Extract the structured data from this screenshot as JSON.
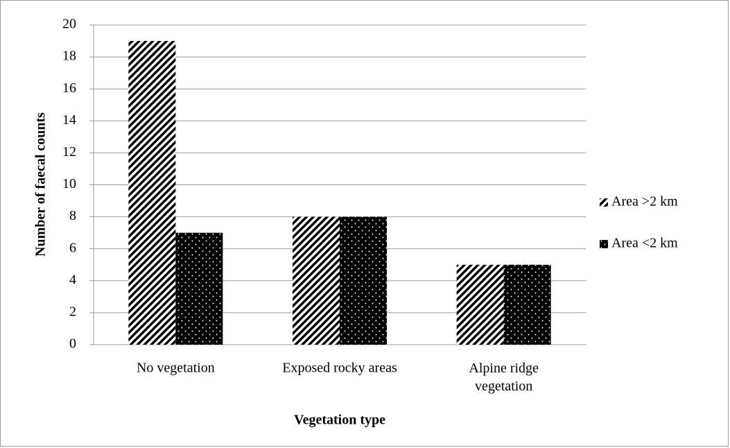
{
  "chart_data": {
    "type": "bar",
    "xlabel": "Vegetation type",
    "ylabel": "Number of faecal counts",
    "categories": [
      "No vegetation",
      "Exposed rocky areas",
      "Alpine ridge vegetation"
    ],
    "series": [
      {
        "name": "Area >2 km",
        "color": "#000000",
        "pattern": "hatch",
        "values": [
          19,
          8,
          5
        ]
      },
      {
        "name": "Area <2 km",
        "color": "#000000",
        "pattern": "dots",
        "values": [
          7,
          8,
          5
        ]
      }
    ],
    "ylim": [
      0,
      20
    ],
    "yticks": [
      0,
      2,
      4,
      6,
      8,
      10,
      12,
      14,
      16,
      18,
      20
    ],
    "grid": true,
    "legend": "right"
  }
}
